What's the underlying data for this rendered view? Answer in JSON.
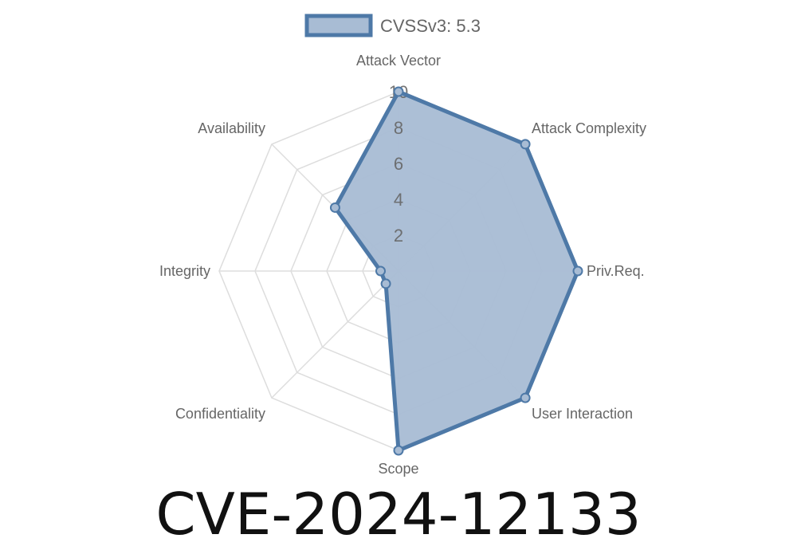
{
  "chart_data": {
    "type": "radar",
    "title": "CVE-2024-12133",
    "legend": {
      "position": "top",
      "entries": [
        "CVSSv3: 5.3"
      ]
    },
    "axes": [
      "Attack Vector",
      "Attack Complexity",
      "Priv.Req.",
      "User Interaction",
      "Scope",
      "Confidentiality",
      "Integrity",
      "Availability"
    ],
    "series": [
      {
        "name": "CVSSv3: 5.3",
        "values": [
          10,
          10,
          10,
          10,
          10,
          1,
          1,
          5
        ]
      }
    ],
    "rlim": [
      0,
      10
    ],
    "ticks": [
      "2",
      "4",
      "6",
      "8",
      "10"
    ],
    "grid": true,
    "colors": {
      "line": "#4e79a7",
      "fill": "#a8bcd4",
      "grid": "#dddddd"
    }
  }
}
